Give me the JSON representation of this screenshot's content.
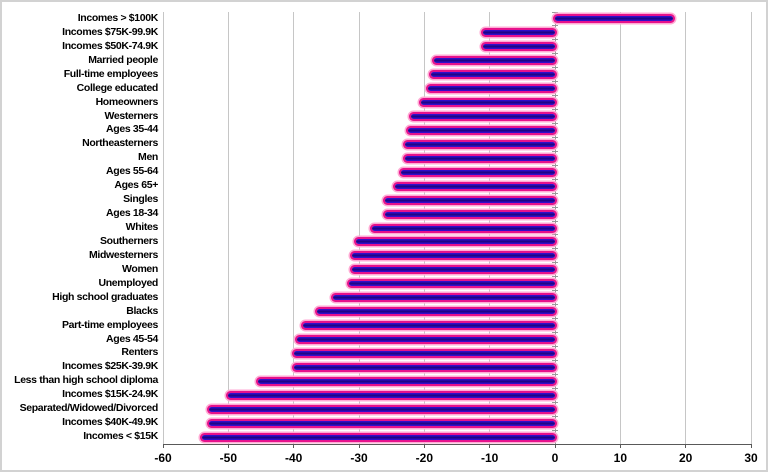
{
  "chart_data": {
    "type": "bar",
    "orientation": "horizontal",
    "title": "",
    "xlabel": "",
    "ylabel": "",
    "xlim": [
      -60,
      30
    ],
    "xticks": [
      -60,
      -50,
      -40,
      -30,
      -20,
      -10,
      0,
      10,
      20,
      30
    ],
    "grid": "vertical",
    "legend": "none",
    "categories": [
      "Incomes > $100K",
      "Incomes $75K-99.9K",
      "Incomes $50K-74.9K",
      "Married people",
      "Full-time employees",
      "College educated",
      "Homeowners",
      "Westerners",
      "Ages 35-44",
      "Northeasterners",
      "Men",
      "Ages 55-64",
      "Ages 65+",
      "Singles",
      "Ages 18-34",
      "Whites",
      "Southerners",
      "Midwesterners",
      "Women",
      "Unemployed",
      "High school graduates",
      "Blacks",
      "Part-time employees",
      "Ages 45-54",
      "Renters",
      "Incomes $25K-39.9K",
      "Less than high school diploma",
      "Incomes $15K-24.9K",
      "Separated/Widowed/Divorced",
      "Incomes $40K-49.9K",
      "Incomes < $15K"
    ],
    "values": [
      18,
      -11,
      -11,
      -18.5,
      -19,
      -19.5,
      -20.5,
      -22,
      -22.5,
      -23,
      -23,
      -23.5,
      -24.5,
      -26,
      -26,
      -28,
      -30.5,
      -31,
      -31,
      -31.5,
      -34,
      -36.5,
      -38.5,
      -39.5,
      -40,
      -40,
      -45.5,
      -50,
      -53,
      -53,
      -54
    ],
    "colors": {
      "bar_core": "#3511dc",
      "bar_core_dark": "#1c047f",
      "bar_ring": "#e6118c",
      "bar_glow": "#ffaad4",
      "gridline": "#c6c6c6",
      "axis": "#595959",
      "category_axis": "#9a9a9a",
      "label": "#000000",
      "background": "#ffffff",
      "frame": "#d2d2d2"
    }
  }
}
